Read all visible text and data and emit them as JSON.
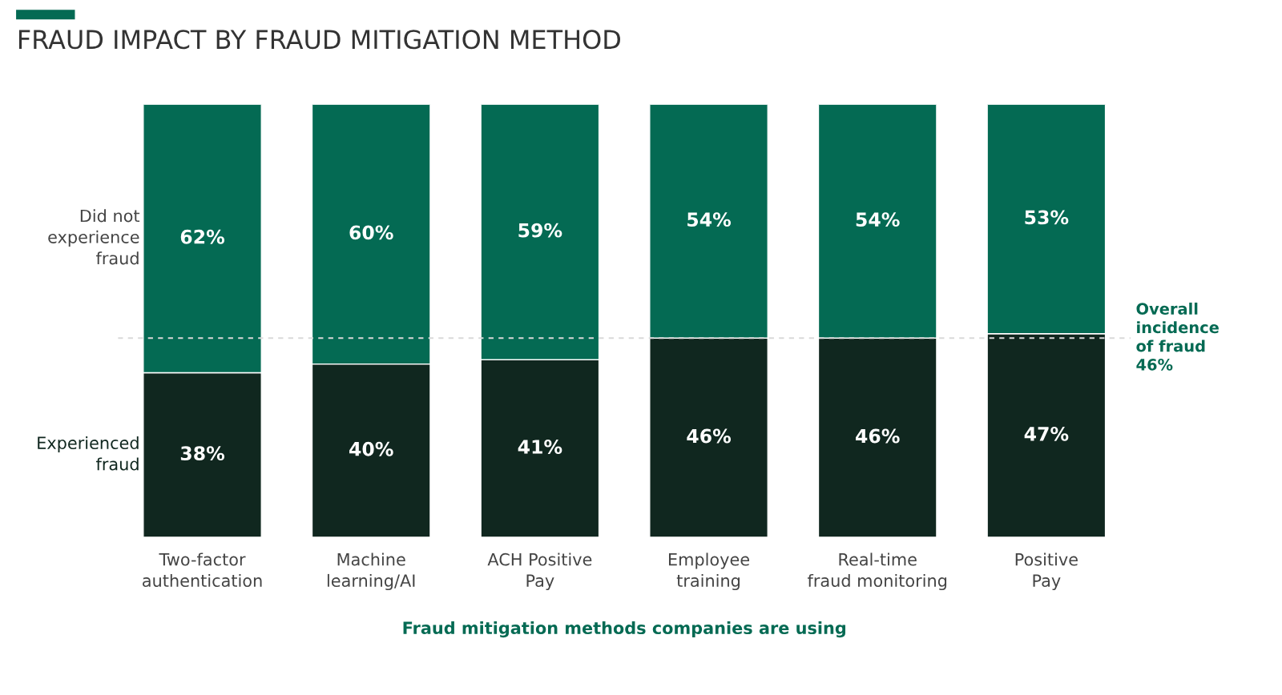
{
  "chart_data": {
    "type": "bar",
    "title": "FRAUD IMPACT BY FRAUD MITIGATION METHOD",
    "xlabel": "Fraud mitigation methods companies are using",
    "categories": [
      "Two-factor\nauthentication",
      "Machine\nlearning/AI",
      "ACH Positive\nPay",
      "Employee\ntraining",
      "Real-time\nfraud monitoring",
      "Positive\nPay"
    ],
    "stacked": true,
    "legend": false,
    "series": [
      {
        "name": "Experienced\nfraud",
        "color": "#10271f",
        "values": [
          38,
          40,
          41,
          46,
          46,
          47
        ],
        "value_labels": [
          "38%",
          "40%",
          "41%",
          "46%",
          "46%",
          "47%"
        ]
      },
      {
        "name": "Did not\nexperience\nfraud",
        "color": "#046a53",
        "values": [
          62,
          60,
          59,
          54,
          54,
          53
        ],
        "value_labels": [
          "62%",
          "60%",
          "59%",
          "54%",
          "54%",
          "53%"
        ]
      }
    ],
    "ref_lines": [
      {
        "axis": "y",
        "value": 46,
        "label": "Overall\nincidence\nof fraud\n46%",
        "color": "#d9d9d9",
        "line_style": "dashed"
      }
    ]
  }
}
